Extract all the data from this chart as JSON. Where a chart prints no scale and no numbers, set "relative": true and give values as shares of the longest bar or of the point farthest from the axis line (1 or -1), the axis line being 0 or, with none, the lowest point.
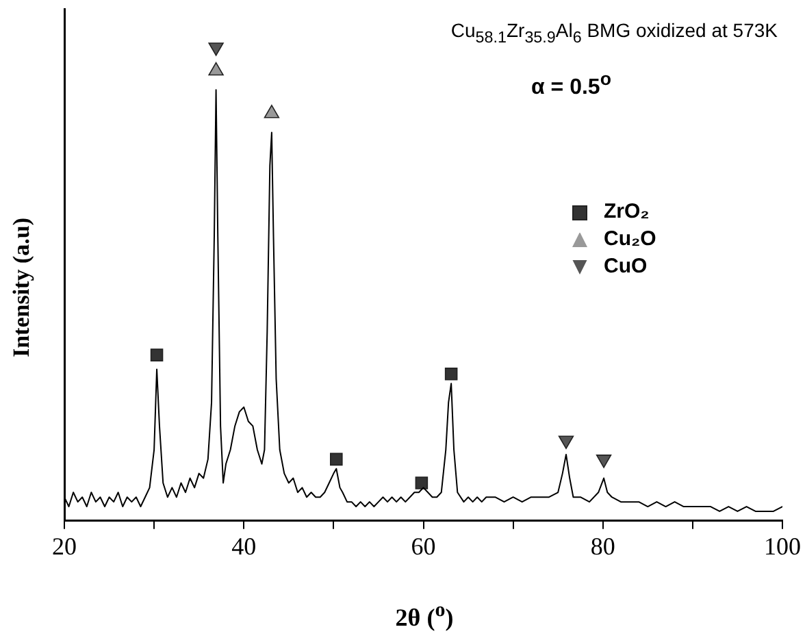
{
  "chart_data": {
    "type": "line",
    "relative": true,
    "xlabel": "2θ ($^{o}$)",
    "ylabel": "Intensity (a.u)",
    "annotations": [
      "Cu$_{58.1}$Zr$_{35.9}$Al$_{6}$ BMG oxidized at 573K",
      "α = 0.5$^{o}$"
    ],
    "xlim": [
      20,
      100
    ],
    "xticks": [
      20,
      {
        "value": 30,
        "label": null
      },
      40,
      {
        "value": 50,
        "label": null
      },
      60,
      {
        "value": 70,
        "label": null
      },
      80,
      {
        "value": 90,
        "label": null
      },
      100
    ],
    "grid": false,
    "legend": "right",
    "line_style": "solid",
    "series": [
      {
        "type": "line",
        "color": "#000000",
        "marker": "none",
        "x": [
          20,
          20.5,
          21,
          21.5,
          22,
          22.5,
          23,
          23.5,
          24,
          24.5,
          25,
          25.5,
          26,
          26.5,
          27,
          27.5,
          28,
          28.5,
          29,
          29.5,
          30,
          30.3,
          30.6,
          31,
          31.5,
          32,
          32.5,
          33,
          33.5,
          34,
          34.5,
          35,
          35.5,
          36,
          36.4,
          36.7,
          36.9,
          37.1,
          37.4,
          37.7,
          38,
          38.5,
          39,
          39.5,
          40,
          40.5,
          41,
          41.5,
          42,
          42.3,
          42.6,
          42.9,
          43.1,
          43.3,
          43.6,
          44,
          44.5,
          45,
          45.5,
          46,
          46.5,
          47,
          47.5,
          48,
          48.5,
          49,
          49.5,
          50,
          50.3,
          50.7,
          51,
          51.5,
          52,
          52.5,
          53,
          53.5,
          54,
          54.5,
          55,
          55.5,
          56,
          56.5,
          57,
          57.5,
          58,
          58.5,
          59,
          59.5,
          60,
          60.5,
          61,
          61.5,
          62,
          62.5,
          62.8,
          63.1,
          63.4,
          63.8,
          64.5,
          65,
          65.5,
          66,
          66.5,
          67,
          68,
          69,
          70,
          71,
          72,
          73,
          74,
          75,
          75.5,
          75.9,
          76.3,
          76.7,
          77.5,
          78.5,
          79.5,
          80.1,
          80.5,
          81,
          82,
          83,
          84,
          85,
          86,
          87,
          88,
          89,
          90,
          91,
          92,
          93,
          94,
          95,
          96,
          97,
          98,
          99,
          100
        ],
        "values": [
          0.05,
          0.03,
          0.06,
          0.04,
          0.05,
          0.03,
          0.06,
          0.04,
          0.05,
          0.03,
          0.05,
          0.04,
          0.06,
          0.03,
          0.05,
          0.04,
          0.05,
          0.03,
          0.05,
          0.07,
          0.15,
          0.32,
          0.2,
          0.08,
          0.05,
          0.07,
          0.05,
          0.08,
          0.06,
          0.09,
          0.07,
          0.1,
          0.09,
          0.13,
          0.25,
          0.6,
          0.91,
          0.6,
          0.2,
          0.08,
          0.12,
          0.15,
          0.2,
          0.23,
          0.24,
          0.21,
          0.2,
          0.15,
          0.12,
          0.15,
          0.4,
          0.75,
          0.82,
          0.6,
          0.3,
          0.15,
          0.1,
          0.08,
          0.09,
          0.06,
          0.07,
          0.05,
          0.06,
          0.05,
          0.05,
          0.06,
          0.08,
          0.1,
          0.11,
          0.07,
          0.06,
          0.04,
          0.04,
          0.03,
          0.04,
          0.03,
          0.04,
          0.03,
          0.04,
          0.05,
          0.04,
          0.05,
          0.04,
          0.05,
          0.04,
          0.05,
          0.06,
          0.06,
          0.07,
          0.06,
          0.05,
          0.05,
          0.06,
          0.15,
          0.25,
          0.29,
          0.15,
          0.06,
          0.04,
          0.05,
          0.04,
          0.05,
          0.04,
          0.05,
          0.05,
          0.04,
          0.05,
          0.04,
          0.05,
          0.05,
          0.05,
          0.06,
          0.1,
          0.14,
          0.09,
          0.05,
          0.05,
          0.04,
          0.06,
          0.09,
          0.06,
          0.05,
          0.04,
          0.04,
          0.04,
          0.03,
          0.04,
          0.03,
          0.04,
          0.03,
          0.03,
          0.03,
          0.03,
          0.02,
          0.03,
          0.02,
          0.03,
          0.02,
          0.02,
          0.02,
          0.03
        ]
      },
      {
        "type": "scatter",
        "name": "ZrO₂",
        "color": "#333333",
        "marker": "square",
        "x": [
          30.3,
          50.3,
          59.8,
          63.1
        ],
        "values": [
          0.35,
          0.13,
          0.08,
          0.31
        ]
      },
      {
        "type": "scatter",
        "name": "Cu₂O",
        "color": "#999999",
        "marker": "triangle",
        "x": [
          36.9,
          43.1
        ],
        "values": [
          0.95,
          0.86
        ]
      },
      {
        "type": "scatter",
        "name": "CuO",
        "color": "#555555",
        "marker": "triangle-down",
        "x": [
          36.9,
          75.9,
          80.1
        ],
        "values": [
          1,
          0.17,
          0.13
        ]
      }
    ]
  }
}
